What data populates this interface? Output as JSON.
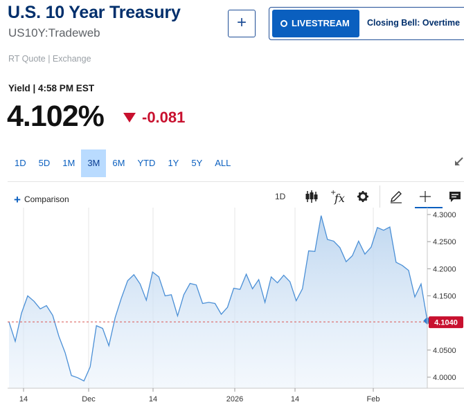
{
  "header": {
    "title": "U.S. 10 Year Treasury",
    "symbol": "US10Y:Tradeweb",
    "add_label": "+",
    "livestream_label": "LIVESTREAM",
    "livestream_show": "Closing Bell: Overtime"
  },
  "quote": {
    "source": "RT Quote | Exchange",
    "yield_time": "Yield | 4:58 PM EST",
    "price": "4.102%",
    "change": "-0.081"
  },
  "ranges": [
    {
      "label": "1D",
      "active": false
    },
    {
      "label": "5D",
      "active": false
    },
    {
      "label": "1M",
      "active": false
    },
    {
      "label": "3M",
      "active": true
    },
    {
      "label": "6M",
      "active": false
    },
    {
      "label": "YTD",
      "active": false
    },
    {
      "label": "1Y",
      "active": false
    },
    {
      "label": "5Y",
      "active": false
    },
    {
      "label": "ALL",
      "active": false
    }
  ],
  "toolbar": {
    "comparison_label": "Comparison",
    "interval_label": "1D",
    "icons": [
      "candlestick-icon",
      "function-icon",
      "gear-icon",
      "pencil-icon",
      "crosshair-icon",
      "comment-icon"
    ]
  },
  "colors": {
    "line": "#4a8fd6",
    "negative": "#c8102e",
    "brand": "#002f6c",
    "accent": "#0a5fbf"
  },
  "chart_data": {
    "type": "area",
    "y_ticks": [
      "4.3000",
      "4.2500",
      "4.2000",
      "4.1500",
      "4.1000",
      "4.0500",
      "4.0000"
    ],
    "ylim": [
      3.985,
      4.305
    ],
    "x_ticks": [
      "14",
      "Dec",
      "14",
      "2026",
      "14",
      "Feb"
    ],
    "last_value_label": "4.1040",
    "reference_line": 4.102,
    "values": [
      4.102,
      4.066,
      4.118,
      4.15,
      4.14,
      4.126,
      4.132,
      4.114,
      4.075,
      4.045,
      4.003,
      3.999,
      3.993,
      4.019,
      4.095,
      4.09,
      4.058,
      4.11,
      4.146,
      4.178,
      4.189,
      4.172,
      4.142,
      4.194,
      4.185,
      4.15,
      4.152,
      4.113,
      4.152,
      4.173,
      4.17,
      4.136,
      4.138,
      4.136,
      4.116,
      4.129,
      4.164,
      4.162,
      4.19,
      4.163,
      4.18,
      4.138,
      4.185,
      4.174,
      4.188,
      4.176,
      4.141,
      4.163,
      4.233,
      4.232,
      4.298,
      4.254,
      4.251,
      4.239,
      4.213,
      4.224,
      4.251,
      4.227,
      4.24,
      4.276,
      4.271,
      4.277,
      4.212,
      4.206,
      4.197,
      4.148,
      4.172,
      4.104
    ]
  }
}
